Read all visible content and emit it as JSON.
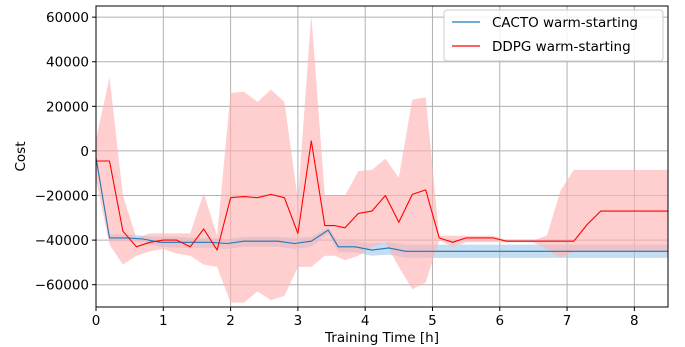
{
  "chart_data": {
    "type": "line",
    "title": "",
    "xlabel": "Training Time [h]",
    "ylabel": "Cost",
    "xlim": [
      0,
      8.5
    ],
    "ylim": [
      -70000,
      65000
    ],
    "xticks": [
      0,
      1,
      2,
      3,
      4,
      5,
      6,
      7,
      8
    ],
    "xtick_labels": [
      "0",
      "1",
      "2",
      "3",
      "4",
      "5",
      "6",
      "7",
      "8"
    ],
    "yticks": [
      -60000,
      -40000,
      -20000,
      0,
      20000,
      40000,
      60000
    ],
    "ytick_labels": [
      "−60000",
      "−40000",
      "−20000",
      "0",
      "20000",
      "40000",
      "60000"
    ],
    "grid": true,
    "legend_position": "top-right",
    "series": [
      {
        "name": "CACTO warm-starting",
        "color": "#1f77b4",
        "band_color": "#9ec7e6",
        "x": [
          0,
          0.2,
          0.45,
          0.7,
          0.95,
          1.2,
          1.45,
          1.7,
          1.95,
          2.2,
          2.45,
          2.7,
          2.95,
          3.2,
          3.45,
          3.6,
          3.85,
          4.1,
          4.35,
          4.6,
          4.85,
          5.1,
          5.35,
          5.6,
          5.85,
          6.1,
          6.35,
          6.6,
          6.85,
          7.1,
          7.35,
          7.6,
          7.85,
          8.1,
          8.35,
          8.5
        ],
        "y": [
          -3000,
          -39000,
          -39000,
          -39500,
          -41000,
          -41000,
          -41000,
          -41000,
          -41500,
          -40500,
          -40500,
          -40500,
          -41500,
          -40500,
          -35500,
          -43000,
          -43000,
          -44500,
          -43500,
          -45000,
          -45000,
          -45000,
          -45000,
          -45000,
          -45000,
          -45000,
          -45000,
          -45000,
          -45000,
          -45000,
          -45000,
          -45000,
          -45000,
          -45000,
          -45000,
          -45000
        ],
        "upper": [
          -3000,
          -37500,
          -37500,
          -38000,
          -38500,
          -38500,
          -39000,
          -39000,
          -39500,
          -38500,
          -38500,
          -38500,
          -39000,
          -38500,
          -34500,
          -40500,
          -40500,
          -41500,
          -41000,
          -42000,
          -42000,
          -42000,
          -42000,
          -42000,
          -42000,
          -42000,
          -42000,
          -42000,
          -42000,
          -42000,
          -42000,
          -42000,
          -42000,
          -42000,
          -42000,
          -42000
        ],
        "lower": [
          -3000,
          -40500,
          -40500,
          -41000,
          -43000,
          -43500,
          -43500,
          -43500,
          -44000,
          -43000,
          -43000,
          -43000,
          -44000,
          -43000,
          -37000,
          -45500,
          -45500,
          -47000,
          -46500,
          -48000,
          -48000,
          -48000,
          -48000,
          -48000,
          -48000,
          -48000,
          -48000,
          -48000,
          -48000,
          -48000,
          -48000,
          -48000,
          -48000,
          -48000,
          -48000,
          -48000
        ]
      },
      {
        "name": "DDPG warm-starting",
        "color": "#ff0000",
        "band_color": "#ffb3b3",
        "x": [
          0,
          0.2,
          0.4,
          0.6,
          0.8,
          1.0,
          1.2,
          1.4,
          1.6,
          1.8,
          2.0,
          2.2,
          2.4,
          2.6,
          2.8,
          3.0,
          3.2,
          3.4,
          3.55,
          3.7,
          3.9,
          4.1,
          4.3,
          4.5,
          4.7,
          4.9,
          5.1,
          5.3,
          5.5,
          5.7,
          5.9,
          6.1,
          6.3,
          6.5,
          6.7,
          6.9,
          7.1,
          7.3,
          7.5,
          7.7,
          7.9,
          8.1,
          8.3,
          8.5
        ],
        "y": [
          -4500,
          -4500,
          -36000,
          -43000,
          -41000,
          -40000,
          -40000,
          -43000,
          -35000,
          -44500,
          -21000,
          -20500,
          -21000,
          -19500,
          -21000,
          -37000,
          4500,
          -33500,
          -33500,
          -34500,
          -28000,
          -27000,
          -20000,
          -32000,
          -19500,
          -17500,
          -39000,
          -41000,
          -39000,
          -39000,
          -39000,
          -40500,
          -40500,
          -40500,
          -40500,
          -40500,
          -40500,
          -33000,
          -27000,
          -27000,
          -27000,
          -27000,
          -27000,
          -27000
        ],
        "upper": [
          5000,
          33000,
          -20000,
          -39000,
          -37000,
          -37000,
          -37000,
          -37000,
          -19000,
          -38000,
          26000,
          26500,
          22000,
          27500,
          22000,
          -22000,
          61000,
          -20000,
          -20000,
          -20000,
          -9000,
          -8500,
          -3500,
          -12000,
          23000,
          24000,
          -38000,
          -38000,
          -38000,
          -38000,
          -38000,
          -40000,
          -40000,
          -40000,
          -38000,
          -18000,
          -8500,
          -8500,
          -8500,
          -8500,
          -8500,
          -8500,
          -8500,
          -8500
        ],
        "lower": [
          -13000,
          -42000,
          -51000,
          -47000,
          -45000,
          -44000,
          -46000,
          -47000,
          -51000,
          -52000,
          -68000,
          -68000,
          -63000,
          -67000,
          -65000,
          -52000,
          -52000,
          -47000,
          -47000,
          -49000,
          -47000,
          -43000,
          -41000,
          -52000,
          -62000,
          -59000,
          -40000,
          -43000,
          -41000,
          -41000,
          -41000,
          -41000,
          -41000,
          -41000,
          -44000,
          -48000,
          -45000,
          -45000,
          -45000,
          -45000,
          -45000,
          -45000,
          -45000,
          -45000
        ]
      }
    ]
  }
}
